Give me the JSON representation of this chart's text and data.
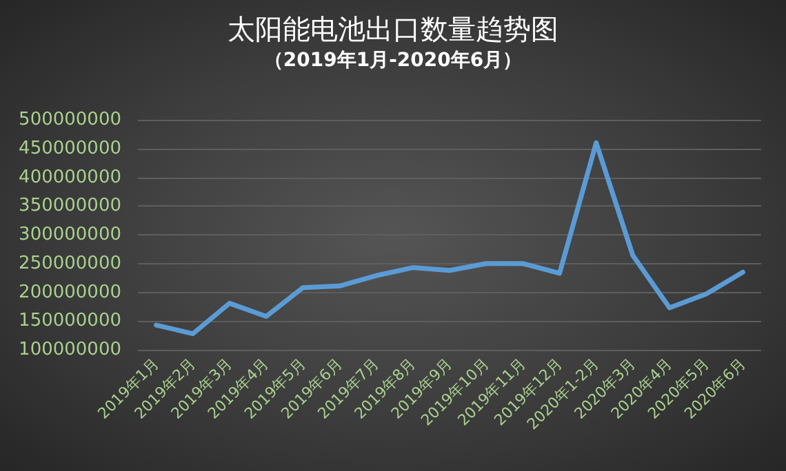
{
  "chart_data": {
    "type": "line",
    "title": "太阳能电池出口数量趋势图",
    "subtitle": "（2019年1月-2020年6月）",
    "categories": [
      "2019年1月",
      "2019年2月",
      "2019年3月",
      "2019年4月",
      "2019年5月",
      "2019年6月",
      "2019年7月",
      "2019年8月",
      "2019年9月",
      "2019年10月",
      "2019年11月",
      "2019年12月",
      "2020年1-2月",
      "2020年3月",
      "2020年4月",
      "2020年5月",
      "2020年6月"
    ],
    "series": [
      {
        "color": "#5b9bd5",
        "values": [
          143000000,
          128000000,
          181000000,
          158000000,
          208000000,
          211000000,
          229000000,
          243000000,
          238000000,
          250000000,
          250000000,
          233000000,
          460000000,
          264000000,
          173000000,
          197000000,
          235000000
        ]
      }
    ],
    "ylim": [
      100000000,
      500000000
    ],
    "yticks": [
      100000000,
      150000000,
      200000000,
      250000000,
      300000000,
      350000000,
      400000000,
      450000000,
      500000000
    ],
    "grid": "y",
    "marker": "none",
    "line_style": "solid"
  }
}
